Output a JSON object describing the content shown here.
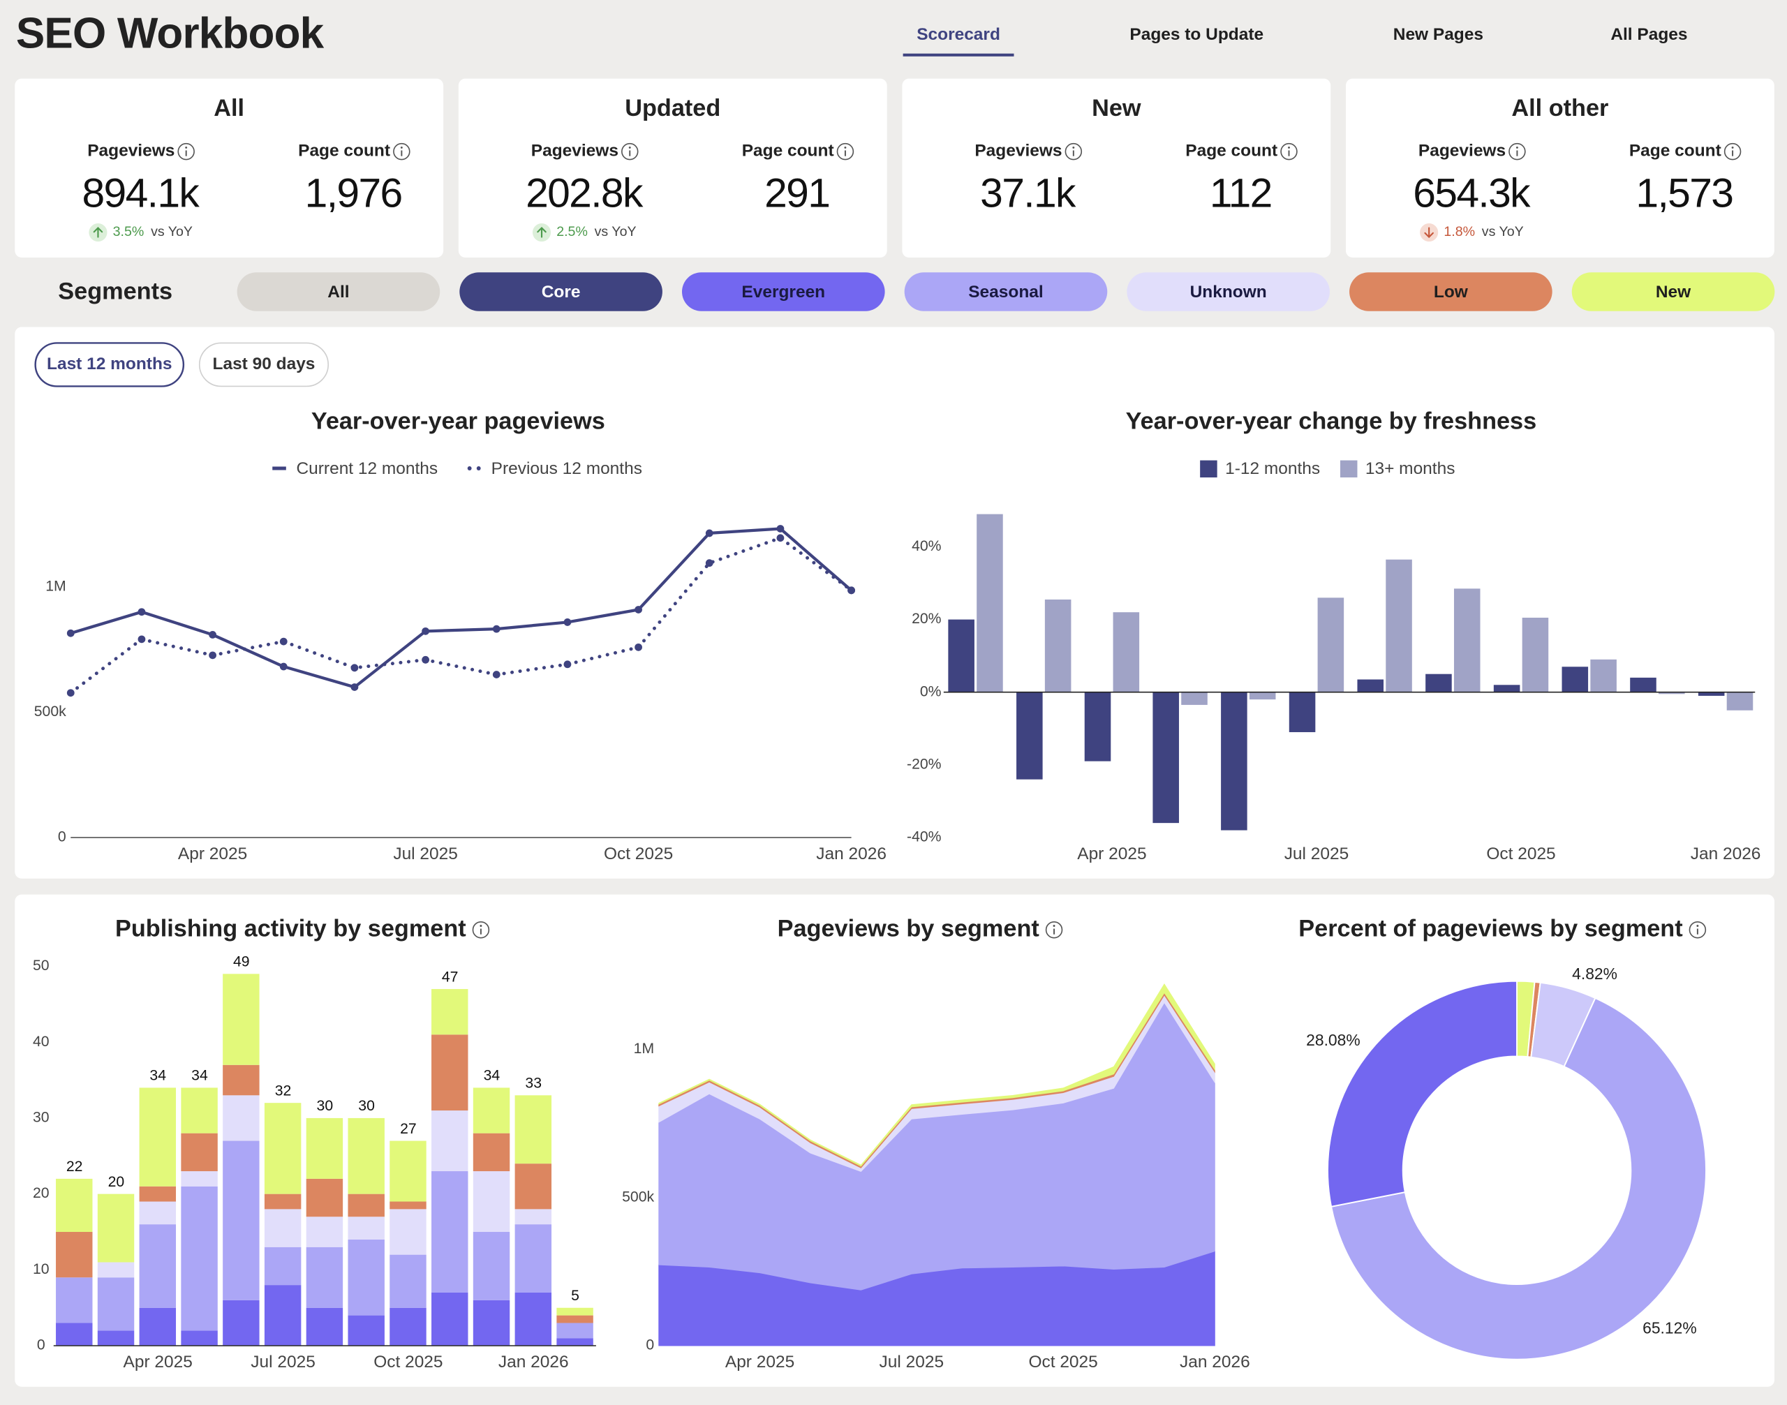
{
  "header": {
    "title": "SEO Workbook",
    "tabs": [
      "Scorecard",
      "Pages to Update",
      "New Pages",
      "All Pages"
    ],
    "active_tab": 0
  },
  "cards": [
    {
      "title": "All",
      "metrics": [
        {
          "label": "Pageviews",
          "value": "894.1k",
          "change": "3.5%",
          "direction": "up",
          "change_note": "vs YoY"
        },
        {
          "label": "Page count",
          "value": "1,976"
        }
      ]
    },
    {
      "title": "Updated",
      "metrics": [
        {
          "label": "Pageviews",
          "value": "202.8k",
          "change": "2.5%",
          "direction": "up",
          "change_note": "vs YoY"
        },
        {
          "label": "Page count",
          "value": "291"
        }
      ]
    },
    {
      "title": "New",
      "metrics": [
        {
          "label": "Pageviews",
          "value": "37.1k"
        },
        {
          "label": "Page count",
          "value": "112"
        }
      ]
    },
    {
      "title": "All other",
      "metrics": [
        {
          "label": "Pageviews",
          "value": "654.3k",
          "change": "1.8%",
          "direction": "down",
          "change_note": "vs YoY"
        },
        {
          "label": "Page count",
          "value": "1,573"
        }
      ]
    }
  ],
  "segments": {
    "title": "Segments",
    "items": [
      {
        "name": "All",
        "color": "#dbd8d3",
        "text_color": "#1f1f1f"
      },
      {
        "name": "Core",
        "color": "#3f4380",
        "text_color": "#ffffff"
      },
      {
        "name": "Evergreen",
        "color": "#7367f0",
        "text_color": "#1a1a40"
      },
      {
        "name": "Seasonal",
        "color": "#aba6f6",
        "text_color": "#1a1a40"
      },
      {
        "name": "Unknown",
        "color": "#e1defb",
        "text_color": "#1a1a40"
      },
      {
        "name": "Low",
        "color": "#dc8660",
        "text_color": "#1f1f1f"
      },
      {
        "name": "New",
        "color": "#e2f97a",
        "text_color": "#1f1f1f"
      }
    ]
  },
  "filters": {
    "options": [
      "Last 12 months",
      "Last 90 days"
    ],
    "active": 0
  },
  "chart_data": [
    {
      "type": "line",
      "title": "Year-over-year pageviews",
      "categories": [
        null,
        null,
        "Apr 2025",
        null,
        null,
        "Jul 2025",
        null,
        null,
        "Oct 2025",
        null,
        null,
        "Jan 2026"
      ],
      "ylim": [
        0,
        1300000
      ],
      "yticks": [
        0,
        {
          "value": 500000,
          "label": "500k"
        },
        {
          "value": 1000000,
          "label": "1M"
        }
      ],
      "series": [
        {
          "name": "Current 12 months",
          "color": "#3f4380",
          "style": "solid",
          "values": [
            815000,
            900000,
            809000,
            682000,
            600000,
            823000,
            832000,
            859000,
            909000,
            1214000,
            1232000,
            986000
          ]
        },
        {
          "name": "Previous 12 months",
          "color": "#3f4380",
          "style": "dotted",
          "values": [
            577000,
            791000,
            727000,
            782000,
            677000,
            709000,
            650000,
            691000,
            759000,
            1095000,
            1195000,
            986000
          ]
        }
      ]
    },
    {
      "type": "bar",
      "title": "Year-over-year change by freshness",
      "categories": [
        null,
        null,
        "Apr 2025",
        null,
        null,
        "Jul 2025",
        null,
        null,
        "Oct 2025",
        null,
        null,
        "Jan 2026"
      ],
      "ylim": [
        -40,
        50
      ],
      "yticks": [
        {
          "value": -40,
          "label": "-40%"
        },
        {
          "value": -20,
          "label": "-20%"
        },
        {
          "value": 0,
          "label": "0%"
        },
        {
          "value": 20,
          "label": "20%"
        },
        {
          "value": 40,
          "label": "40%"
        }
      ],
      "series": [
        {
          "name": "1-12 months",
          "color": "#3f4380",
          "values": [
            20,
            -24,
            -19,
            -36,
            -38,
            -11,
            3.5,
            5,
            2,
            7,
            4,
            -1
          ]
        },
        {
          "name": "13+ months",
          "color": "#a0a3c6",
          "values": [
            49,
            25.5,
            22,
            -3.5,
            -2,
            26,
            36.5,
            28.5,
            20.5,
            9,
            -0.5,
            -5
          ]
        }
      ]
    },
    {
      "type": "stacked_bar",
      "title": "Publishing activity by segment",
      "categories": [
        null,
        null,
        "Apr 2025",
        null,
        null,
        "Jul 2025",
        null,
        null,
        "Oct 2025",
        null,
        null,
        "Jan 2026",
        null
      ],
      "ylim": [
        0,
        50
      ],
      "yticks": [
        0,
        10,
        20,
        30,
        40,
        50
      ],
      "series": [
        {
          "color": "#7367f0",
          "values": [
            3,
            2,
            5,
            2,
            6,
            8,
            5,
            4,
            5,
            7,
            6,
            7,
            1
          ]
        },
        {
          "color": "#aba6f6",
          "values": [
            6,
            7,
            11,
            19,
            21,
            5,
            8,
            10,
            7,
            16,
            9,
            9,
            2
          ]
        },
        {
          "color": "#e1defb",
          "values": [
            0,
            2,
            3,
            2,
            6,
            5,
            4,
            3,
            6,
            8,
            8,
            2,
            0
          ]
        },
        {
          "color": "#dc8660",
          "values": [
            6,
            0,
            2,
            5,
            4,
            2,
            5,
            3,
            1,
            10,
            5,
            6,
            1
          ]
        },
        {
          "color": "#e2f97a",
          "values": [
            7,
            9,
            13,
            6,
            12,
            12,
            8,
            10,
            8,
            6,
            6,
            9,
            1
          ]
        }
      ],
      "totals": [
        22,
        20,
        34,
        34,
        49,
        32,
        30,
        30,
        27,
        47,
        34,
        33,
        5
      ]
    },
    {
      "type": "stacked_area",
      "title": "Pageviews by segment",
      "categories": [
        null,
        null,
        "Apr 2025",
        null,
        null,
        "Jul 2025",
        null,
        null,
        "Oct 2025",
        null,
        null,
        "Jan 2026"
      ],
      "ylim": [
        0,
        1250000
      ],
      "yticks": [
        0,
        {
          "value": 500000,
          "label": "500k"
        },
        {
          "value": 1000000,
          "label": "1M"
        }
      ],
      "series": [
        {
          "color": "#7367f0",
          "values": [
            273000,
            265000,
            246000,
            212000,
            188000,
            242000,
            262000,
            265000,
            269000,
            258000,
            265000,
            319000
          ]
        },
        {
          "color": "#aba6f6",
          "values": [
            481000,
            585000,
            519000,
            438000,
            400000,
            523000,
            519000,
            531000,
            550000,
            611000,
            893000,
            569000
          ]
        },
        {
          "color": "#e1defb",
          "values": [
            55000,
            40000,
            40000,
            35000,
            12000,
            35000,
            35000,
            35000,
            35000,
            40000,
            25000,
            35000
          ]
        },
        {
          "color": "#dc8660",
          "values": [
            6000,
            6000,
            6000,
            6000,
            6000,
            6000,
            6000,
            6000,
            6000,
            8000,
            8000,
            8000
          ]
        },
        {
          "color": "#e2f97a",
          "values": [
            4000,
            4000,
            4000,
            4000,
            4000,
            8000,
            8000,
            8000,
            10000,
            25000,
            30000,
            20000
          ]
        }
      ]
    },
    {
      "type": "donut",
      "title": "Percent of pageviews by segment",
      "values": [
        1.5,
        0.48,
        4.82,
        65.12,
        28.08
      ],
      "value_labels": [
        null,
        null,
        "4.82%",
        "65.12%",
        "28.08%"
      ],
      "colors": [
        "#e2f97a",
        "#dc8660",
        "#cdc9fa",
        "#aba6f6",
        "#7367f0"
      ]
    }
  ]
}
